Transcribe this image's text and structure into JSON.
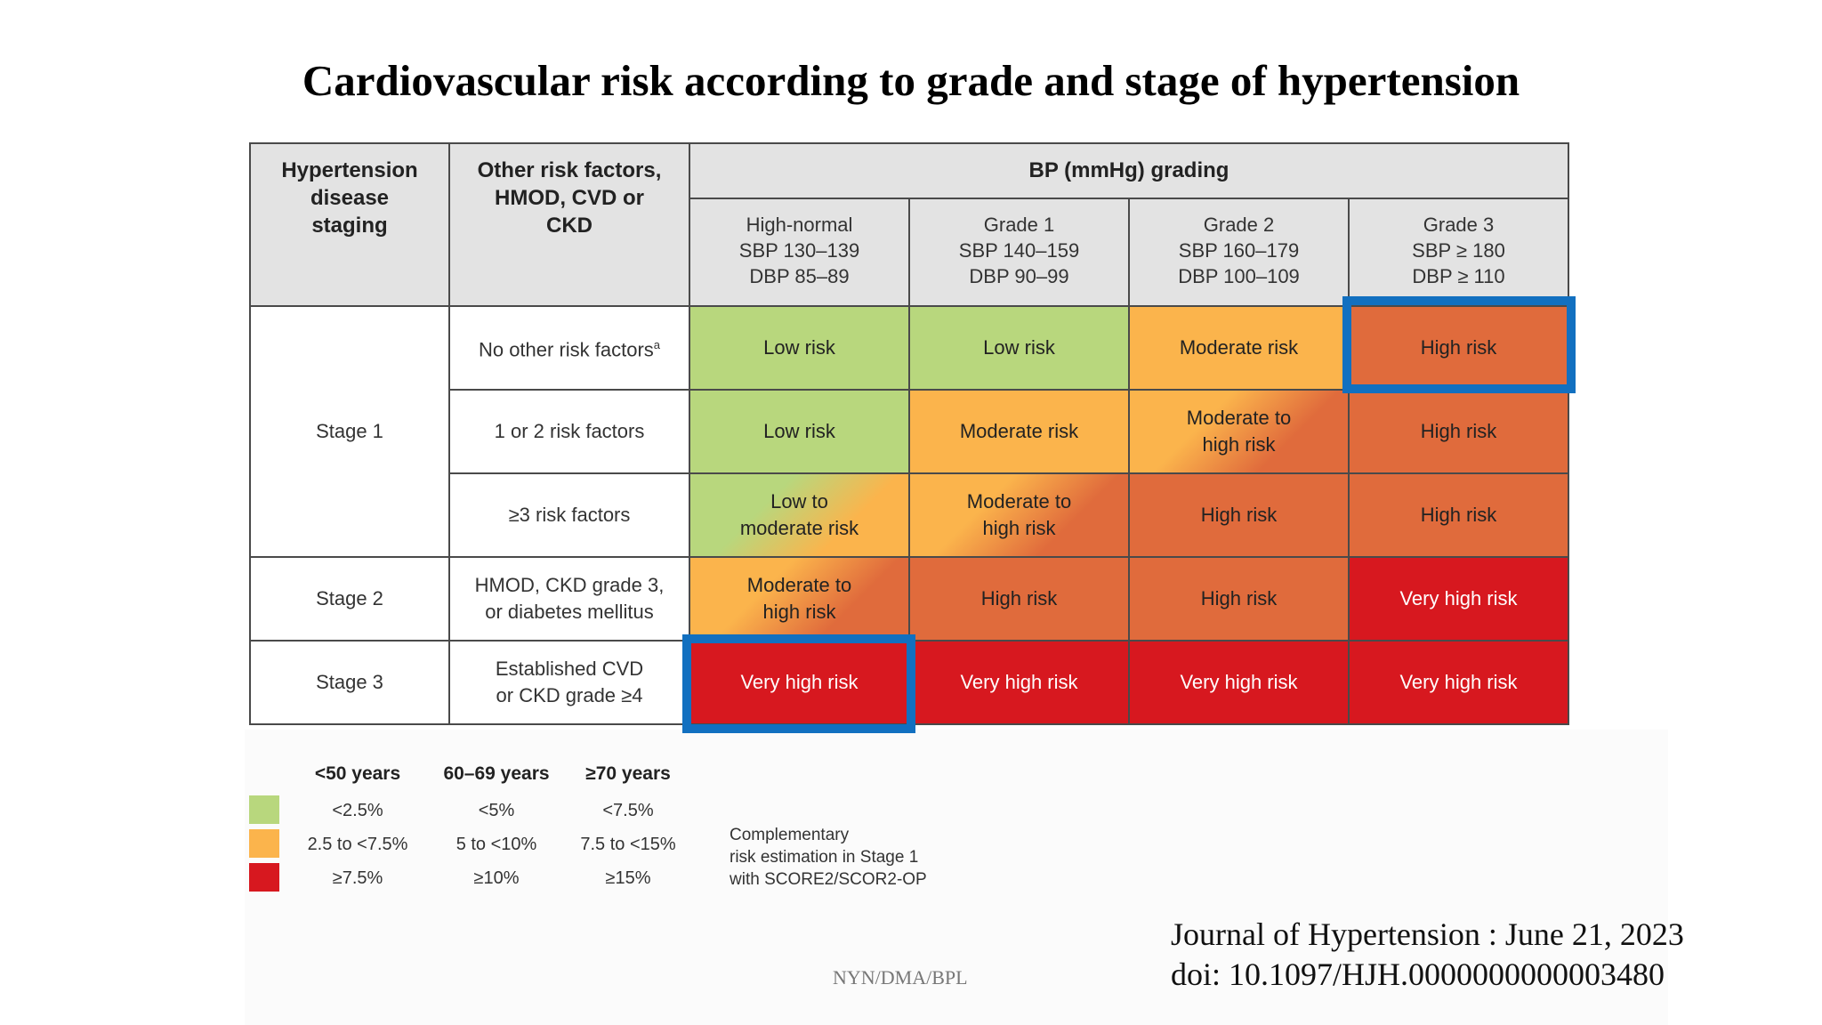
{
  "title": "Cardiovascular risk according to grade and stage of hypertension",
  "colors": {
    "green": "#b8d77d",
    "orange": "#fbb44c",
    "dark_orange": "#e06b3c",
    "red": "#d7181f",
    "header_gray": "#e3e3e3",
    "highlight_blue": "#1270c0"
  },
  "table": {
    "col_staging": "Hypertension disease staging",
    "col_risk_factors": "Other risk factors, HMOD, CVD or CKD",
    "col_bp_grading": "BP (mmHg) grading",
    "grades": [
      {
        "name": "High-normal",
        "sbp": "SBP 130–139",
        "dbp": "DBP 85–89"
      },
      {
        "name": "Grade 1",
        "sbp": "SBP 140–159",
        "dbp": "DBP 90–99"
      },
      {
        "name": "Grade 2",
        "sbp": "SBP 160–179",
        "dbp": "DBP 100–109"
      },
      {
        "name": "Grade 3",
        "sbp": "SBP ≥ 180",
        "dbp": "DBP ≥ 110"
      }
    ],
    "stages": {
      "stage1": "Stage 1",
      "stage2": "Stage 2",
      "stage3": "Stage 3"
    },
    "rows": [
      {
        "risk_factor": "No other risk factors",
        "risk_factor_sup": "a",
        "cells": [
          "Low risk",
          "Low risk",
          "Moderate risk",
          "High risk"
        ],
        "levels": [
          "green",
          "green",
          "orange",
          "dark_orange"
        ]
      },
      {
        "risk_factor": "1 or 2 risk factors",
        "cells": [
          "Low risk",
          "Moderate risk",
          "Moderate to high risk",
          "High risk"
        ],
        "levels": [
          "green",
          "orange",
          "orange-to-dark_orange",
          "dark_orange"
        ]
      },
      {
        "risk_factor": "≥3 risk factors",
        "cells": [
          "Low to moderate risk",
          "Moderate to high risk",
          "High risk",
          "High risk"
        ],
        "levels": [
          "green-to-orange",
          "orange-to-dark_orange",
          "dark_orange",
          "dark_orange"
        ]
      },
      {
        "risk_factor": "HMOD, CKD grade 3, or diabetes mellitus",
        "cells": [
          "Moderate to high risk",
          "High risk",
          "High risk",
          "Very high risk"
        ],
        "levels": [
          "orange-to-dark_orange",
          "dark_orange",
          "dark_orange",
          "red"
        ]
      },
      {
        "risk_factor": "Established CVD or CKD grade ≥4",
        "cells": [
          "Very high risk",
          "Very high risk",
          "Very high risk",
          "Very high risk"
        ],
        "levels": [
          "red",
          "red",
          "red",
          "red"
        ]
      }
    ],
    "highlighted_cells": [
      {
        "row": "No other risk factors",
        "grade": "Grade 3"
      },
      {
        "row": "Established CVD or CKD grade ≥4",
        "grade": "High-normal"
      }
    ]
  },
  "legend": {
    "age_groups": [
      "<50 years",
      "60–69 years",
      "≥70 years"
    ],
    "rows": [
      {
        "color": "green",
        "values": [
          "<2.5%",
          "<5%",
          "<7.5%"
        ]
      },
      {
        "color": "orange",
        "values": [
          "2.5 to <7.5%",
          "5 to <10%",
          "7.5 to <15%"
        ]
      },
      {
        "color": "red",
        "values": [
          "≥7.5%",
          "≥10%",
          "≥15%"
        ]
      }
    ],
    "note_line1": "Complementary",
    "note_line2": "risk estimation in Stage 1",
    "note_line3": "with SCORE2/SCOR2-OP"
  },
  "citation": {
    "line1": "Journal of Hypertension :  June 21, 2023",
    "line2": "doi: 10.1097/HJH.0000000000003480"
  },
  "footer_code": "NYN/DMA/BPL"
}
